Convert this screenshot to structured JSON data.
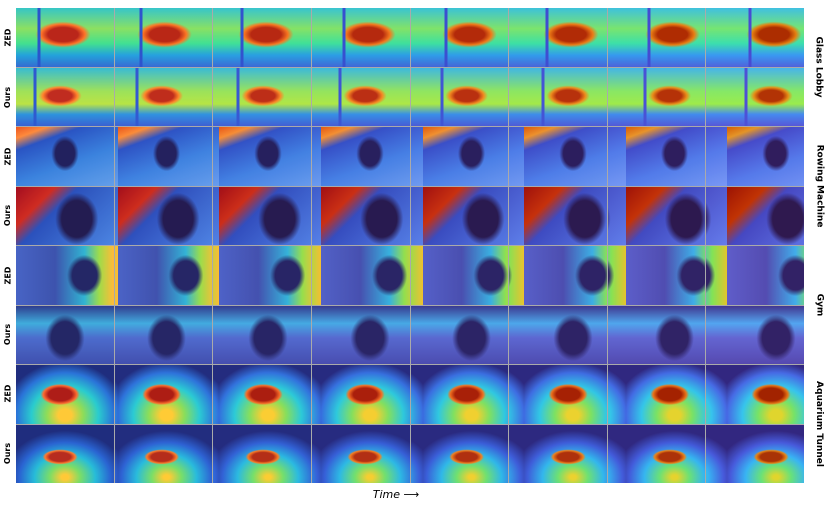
{
  "figure": {
    "num_timesteps": 8,
    "scenes": [
      {
        "name": "Glass Lobby",
        "style": "lobby",
        "rows": [
          "ZED",
          "Ours"
        ]
      },
      {
        "name": "Rowing Machine",
        "style": "rowing",
        "rows": [
          "ZED",
          "Ours"
        ]
      },
      {
        "name": "Gym",
        "style": "gym",
        "rows": [
          "ZED",
          "Ours"
        ]
      },
      {
        "name": "Aquarium Tunnel",
        "style": "aqua",
        "rows": [
          "ZED",
          "Ours"
        ]
      }
    ],
    "xlabel": "Time ⟶"
  }
}
